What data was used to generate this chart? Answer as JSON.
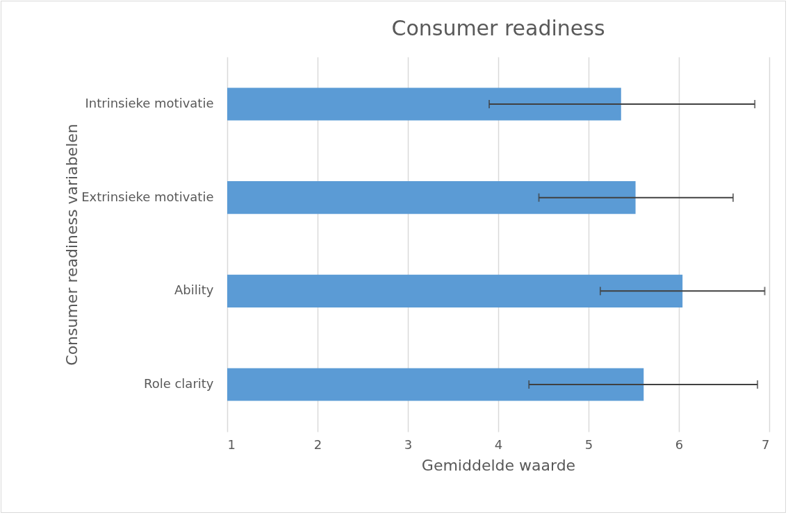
{
  "chart_data": {
    "type": "bar",
    "orientation": "horizontal",
    "title": "Consumer readiness",
    "xlabel": "Gemiddelde waarde",
    "ylabel": "Consumer readiness variabelen",
    "categories": [
      "Intrinsieke motivatie",
      "Extrinsieke motivatie",
      "Ability",
      "Role clarity"
    ],
    "values": [
      5.36,
      5.52,
      6.04,
      5.61
    ],
    "color": "#5b9bd5",
    "errors": [
      [
        3.9,
        6.84
      ],
      [
        4.45,
        6.6
      ],
      [
        5.13,
        6.95
      ],
      [
        4.34,
        6.87
      ]
    ],
    "xlim": [
      1,
      7
    ],
    "xticks": [
      1,
      2,
      3,
      4,
      5,
      6,
      7
    ],
    "grid": "x"
  }
}
